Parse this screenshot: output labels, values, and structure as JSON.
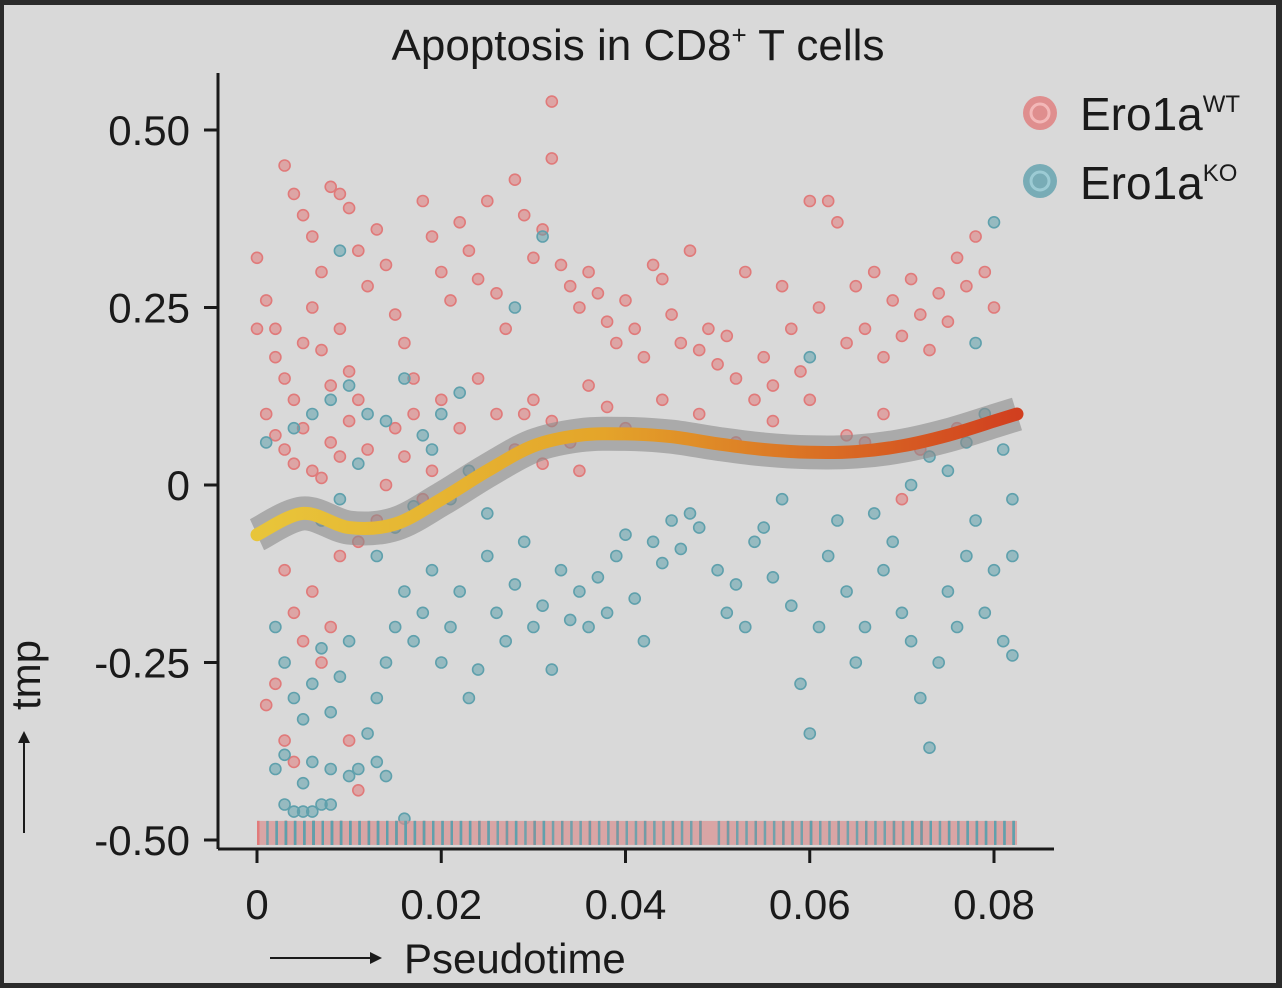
{
  "chart_data": {
    "type": "scatter",
    "title": "Apoptosis in CD8",
    "title_superscript": "+",
    "title_suffix": " T cells",
    "xlabel": "Pseudotime",
    "ylabel": "tmp",
    "xlim": [
      0,
      0.085
    ],
    "ylim": [
      -0.5,
      0.55
    ],
    "x_ticks": [
      0,
      0.02,
      0.04,
      0.06,
      0.08
    ],
    "x_tick_labels": [
      "0",
      "0.02",
      "0.04",
      "0.06",
      "0.08"
    ],
    "y_ticks": [
      0.5,
      0.25,
      0,
      -0.25,
      -0.5
    ],
    "y_tick_labels": [
      "0.50",
      "0.25",
      "0",
      "-0.25",
      "-0.50"
    ],
    "grid": false,
    "legend_position": "top-right",
    "series": [
      {
        "name": "Ero1a",
        "superscript": "WT",
        "color": "#e07a7a",
        "points": [
          [
            0.002,
            0.22
          ],
          [
            0.003,
            0.45
          ],
          [
            0.004,
            0.41
          ],
          [
            0.005,
            0.38
          ],
          [
            0.006,
            0.35
          ],
          [
            0.007,
            0.3
          ],
          [
            0.008,
            0.42
          ],
          [
            0.009,
            0.41
          ],
          [
            0.01,
            0.39
          ],
          [
            0.011,
            0.33
          ],
          [
            0.002,
            0.18
          ],
          [
            0.003,
            0.15
          ],
          [
            0.004,
            0.12
          ],
          [
            0.005,
            0.2
          ],
          [
            0.006,
            0.25
          ],
          [
            0.007,
            0.19
          ],
          [
            0.008,
            0.14
          ],
          [
            0.009,
            0.22
          ],
          [
            0.01,
            0.16
          ],
          [
            0.011,
            0.12
          ],
          [
            0.001,
            0.1
          ],
          [
            0.002,
            0.07
          ],
          [
            0.003,
            0.05
          ],
          [
            0.004,
            0.03
          ],
          [
            0.005,
            0.08
          ],
          [
            0.006,
            0.02
          ],
          [
            0.007,
            0.01
          ],
          [
            0.008,
            0.06
          ],
          [
            0.009,
            0.04
          ],
          [
            0.01,
            0.09
          ],
          [
            0.012,
            0.28
          ],
          [
            0.013,
            0.36
          ],
          [
            0.014,
            0.31
          ],
          [
            0.015,
            0.24
          ],
          [
            0.016,
            0.2
          ],
          [
            0.017,
            0.15
          ],
          [
            0.018,
            0.4
          ],
          [
            0.019,
            0.35
          ],
          [
            0.02,
            0.3
          ],
          [
            0.021,
            0.26
          ],
          [
            0.022,
            0.37
          ],
          [
            0.023,
            0.33
          ],
          [
            0.024,
            0.29
          ],
          [
            0.025,
            0.4
          ],
          [
            0.026,
            0.27
          ],
          [
            0.027,
            0.22
          ],
          [
            0.028,
            0.43
          ],
          [
            0.029,
            0.38
          ],
          [
            0.03,
            0.32
          ],
          [
            0.031,
            0.36
          ],
          [
            0.032,
            0.46
          ],
          [
            0.032,
            0.54
          ],
          [
            0.033,
            0.31
          ],
          [
            0.034,
            0.28
          ],
          [
            0.035,
            0.25
          ],
          [
            0.036,
            0.3
          ],
          [
            0.037,
            0.27
          ],
          [
            0.038,
            0.23
          ],
          [
            0.039,
            0.2
          ],
          [
            0.04,
            0.26
          ],
          [
            0.041,
            0.22
          ],
          [
            0.042,
            0.18
          ],
          [
            0.043,
            0.31
          ],
          [
            0.044,
            0.29
          ],
          [
            0.045,
            0.24
          ],
          [
            0.046,
            0.2
          ],
          [
            0.047,
            0.33
          ],
          [
            0.048,
            0.19
          ],
          [
            0.049,
            0.22
          ],
          [
            0.05,
            0.17
          ],
          [
            0.051,
            0.21
          ],
          [
            0.052,
            0.15
          ],
          [
            0.053,
            0.3
          ],
          [
            0.054,
            0.12
          ],
          [
            0.055,
            0.18
          ],
          [
            0.056,
            0.14
          ],
          [
            0.057,
            0.28
          ],
          [
            0.058,
            0.22
          ],
          [
            0.059,
            0.16
          ],
          [
            0.06,
            0.4
          ],
          [
            0.061,
            0.25
          ],
          [
            0.062,
            0.4
          ],
          [
            0.063,
            0.37
          ],
          [
            0.064,
            0.2
          ],
          [
            0.065,
            0.28
          ],
          [
            0.066,
            0.22
          ],
          [
            0.067,
            0.3
          ],
          [
            0.068,
            0.18
          ],
          [
            0.069,
            0.26
          ],
          [
            0.07,
            0.21
          ],
          [
            0.071,
            0.29
          ],
          [
            0.072,
            0.24
          ],
          [
            0.073,
            0.19
          ],
          [
            0.074,
            0.27
          ],
          [
            0.075,
            0.23
          ],
          [
            0.076,
            0.32
          ],
          [
            0.077,
            0.28
          ],
          [
            0.078,
            0.35
          ],
          [
            0.079,
            0.3
          ],
          [
            0.08,
            0.25
          ],
          [
            0.02,
            0.12
          ],
          [
            0.022,
            0.08
          ],
          [
            0.024,
            0.15
          ],
          [
            0.026,
            0.1
          ],
          [
            0.028,
            0.05
          ],
          [
            0.03,
            0.12
          ],
          [
            0.032,
            0.09
          ],
          [
            0.034,
            0.06
          ],
          [
            0.036,
            0.14
          ],
          [
            0.038,
            0.11
          ],
          [
            0.04,
            0.08
          ],
          [
            0.044,
            0.12
          ],
          [
            0.048,
            0.1
          ],
          [
            0.052,
            0.06
          ],
          [
            0.056,
            0.09
          ],
          [
            0.06,
            0.12
          ],
          [
            0.064,
            0.07
          ],
          [
            0.068,
            0.1
          ],
          [
            0.072,
            0.05
          ],
          [
            0.076,
            0.08
          ],
          [
            0.012,
            0.05
          ],
          [
            0.014,
            0.0
          ],
          [
            0.016,
            0.04
          ],
          [
            0.018,
            -0.02
          ],
          [
            0.013,
            -0.05
          ],
          [
            0.015,
            0.08
          ],
          [
            0.017,
            0.1
          ],
          [
            0.019,
            0.02
          ],
          [
            0.011,
            -0.08
          ],
          [
            0.009,
            -0.1
          ],
          [
            0.003,
            -0.12
          ],
          [
            0.004,
            -0.18
          ],
          [
            0.005,
            -0.22
          ],
          [
            0.006,
            -0.15
          ],
          [
            0.007,
            -0.25
          ],
          [
            0.008,
            -0.2
          ],
          [
            0.002,
            -0.28
          ],
          [
            0.001,
            -0.31
          ],
          [
            0.003,
            -0.36
          ],
          [
            0.004,
            -0.39
          ],
          [
            0.01,
            -0.36
          ],
          [
            0.011,
            -0.43
          ],
          [
            0.0,
            0.32
          ],
          [
            0.001,
            0.26
          ],
          [
            0.0,
            0.22
          ],
          [
            0.029,
            0.1
          ],
          [
            0.031,
            0.03
          ],
          [
            0.035,
            0.02
          ],
          [
            0.066,
            0.06
          ],
          [
            0.07,
            -0.02
          ]
        ]
      },
      {
        "name": "Ero1a",
        "superscript": "KO",
        "color": "#5fa0ac",
        "points": [
          [
            0.001,
            0.06
          ],
          [
            0.002,
            -0.2
          ],
          [
            0.003,
            -0.25
          ],
          [
            0.004,
            -0.3
          ],
          [
            0.005,
            -0.33
          ],
          [
            0.006,
            -0.28
          ],
          [
            0.007,
            -0.23
          ],
          [
            0.008,
            -0.32
          ],
          [
            0.009,
            -0.27
          ],
          [
            0.01,
            -0.22
          ],
          [
            0.002,
            -0.4
          ],
          [
            0.003,
            -0.38
          ],
          [
            0.005,
            -0.42
          ],
          [
            0.006,
            -0.39
          ],
          [
            0.008,
            -0.4
          ],
          [
            0.01,
            -0.41
          ],
          [
            0.011,
            -0.4
          ],
          [
            0.013,
            -0.39
          ],
          [
            0.014,
            -0.41
          ],
          [
            0.003,
            -0.45
          ],
          [
            0.004,
            -0.46
          ],
          [
            0.005,
            -0.46
          ],
          [
            0.006,
            -0.46
          ],
          [
            0.007,
            -0.45
          ],
          [
            0.008,
            -0.45
          ],
          [
            0.016,
            -0.47
          ],
          [
            0.012,
            -0.35
          ],
          [
            0.013,
            -0.3
          ],
          [
            0.014,
            -0.25
          ],
          [
            0.015,
            -0.2
          ],
          [
            0.016,
            -0.15
          ],
          [
            0.017,
            -0.22
          ],
          [
            0.018,
            -0.18
          ],
          [
            0.019,
            -0.12
          ],
          [
            0.02,
            -0.25
          ],
          [
            0.021,
            -0.2
          ],
          [
            0.022,
            -0.15
          ],
          [
            0.023,
            -0.3
          ],
          [
            0.024,
            -0.26
          ],
          [
            0.025,
            -0.1
          ],
          [
            0.026,
            -0.18
          ],
          [
            0.027,
            -0.22
          ],
          [
            0.028,
            -0.14
          ],
          [
            0.029,
            -0.08
          ],
          [
            0.03,
            -0.2
          ],
          [
            0.031,
            -0.17
          ],
          [
            0.032,
            -0.26
          ],
          [
            0.033,
            -0.12
          ],
          [
            0.034,
            -0.19
          ],
          [
            0.035,
            -0.15
          ],
          [
            0.036,
            -0.2
          ],
          [
            0.037,
            -0.13
          ],
          [
            0.038,
            -0.18
          ],
          [
            0.039,
            -0.1
          ],
          [
            0.04,
            -0.07
          ],
          [
            0.041,
            -0.16
          ],
          [
            0.042,
            -0.22
          ],
          [
            0.043,
            -0.08
          ],
          [
            0.044,
            -0.11
          ],
          [
            0.045,
            -0.05
          ],
          [
            0.046,
            -0.09
          ],
          [
            0.047,
            -0.04
          ],
          [
            0.048,
            -0.06
          ],
          [
            0.05,
            -0.12
          ],
          [
            0.051,
            -0.18
          ],
          [
            0.052,
            -0.14
          ],
          [
            0.053,
            -0.2
          ],
          [
            0.054,
            -0.08
          ],
          [
            0.056,
            -0.13
          ],
          [
            0.058,
            -0.17
          ],
          [
            0.059,
            -0.28
          ],
          [
            0.06,
            -0.35
          ],
          [
            0.061,
            -0.2
          ],
          [
            0.062,
            -0.1
          ],
          [
            0.063,
            -0.05
          ],
          [
            0.064,
            -0.15
          ],
          [
            0.065,
            -0.25
          ],
          [
            0.066,
            -0.2
          ],
          [
            0.068,
            -0.12
          ],
          [
            0.069,
            -0.08
          ],
          [
            0.07,
            -0.18
          ],
          [
            0.071,
            -0.22
          ],
          [
            0.072,
            -0.3
          ],
          [
            0.073,
            -0.37
          ],
          [
            0.074,
            -0.25
          ],
          [
            0.075,
            -0.15
          ],
          [
            0.076,
            -0.2
          ],
          [
            0.077,
            -0.1
          ],
          [
            0.078,
            -0.05
          ],
          [
            0.079,
            -0.18
          ],
          [
            0.08,
            -0.12
          ],
          [
            0.081,
            -0.22
          ],
          [
            0.082,
            -0.02
          ],
          [
            0.082,
            -0.1
          ],
          [
            0.082,
            -0.24
          ],
          [
            0.08,
            0.37
          ],
          [
            0.031,
            0.35
          ],
          [
            0.009,
            0.33
          ],
          [
            0.028,
            0.25
          ],
          [
            0.06,
            0.18
          ],
          [
            0.007,
            -0.05
          ],
          [
            0.009,
            -0.02
          ],
          [
            0.011,
            0.03
          ],
          [
            0.013,
            -0.1
          ],
          [
            0.015,
            -0.06
          ],
          [
            0.017,
            -0.03
          ],
          [
            0.019,
            0.05
          ],
          [
            0.021,
            -0.02
          ],
          [
            0.023,
            0.02
          ],
          [
            0.025,
            -0.04
          ],
          [
            0.004,
            0.08
          ],
          [
            0.006,
            0.1
          ],
          [
            0.008,
            0.12
          ],
          [
            0.01,
            0.14
          ],
          [
            0.012,
            0.1
          ],
          [
            0.014,
            0.09
          ],
          [
            0.016,
            0.15
          ],
          [
            0.018,
            0.07
          ],
          [
            0.02,
            0.1
          ],
          [
            0.022,
            0.13
          ],
          [
            0.055,
            -0.06
          ],
          [
            0.057,
            -0.02
          ],
          [
            0.067,
            -0.04
          ],
          [
            0.071,
            0.0
          ],
          [
            0.073,
            0.04
          ],
          [
            0.075,
            0.02
          ],
          [
            0.077,
            0.06
          ],
          [
            0.079,
            0.1
          ],
          [
            0.081,
            0.05
          ],
          [
            0.078,
            0.2
          ]
        ]
      }
    ],
    "smooth_curve": {
      "x": [
        0,
        0.005,
        0.01,
        0.015,
        0.02,
        0.025,
        0.03,
        0.035,
        0.04,
        0.045,
        0.05,
        0.055,
        0.06,
        0.065,
        0.07,
        0.075,
        0.08,
        0.0825
      ],
      "y": [
        -0.07,
        -0.04,
        -0.06,
        -0.055,
        -0.02,
        0.02,
        0.055,
        0.07,
        0.072,
        0.068,
        0.058,
        0.05,
        0.046,
        0.047,
        0.055,
        0.07,
        0.09,
        0.1
      ],
      "color_start": "#e8c53a",
      "color_end": "#d13f1f",
      "band_color": "#8a8a8a"
    },
    "rug": {
      "y": -0.49,
      "colors": [
        "#e07a7a",
        "#5fa0ac"
      ]
    }
  }
}
